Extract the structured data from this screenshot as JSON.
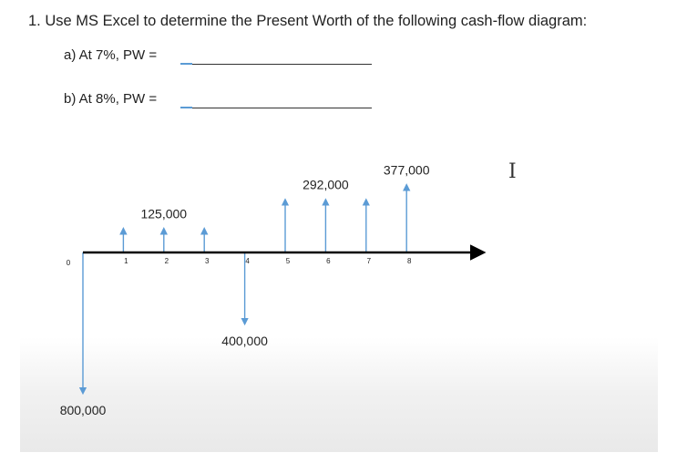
{
  "question": {
    "title": "1. Use MS Excel to determine the Present Worth of the following cash-flow diagram:",
    "part_a": "a)  At 7%, PW =",
    "part_b": "b)  At 8%, PW ="
  },
  "cursor_icon": "text-cursor-icon",
  "colors": {
    "arrow": "#5b9bd5",
    "axis": "#000000"
  },
  "chart_data": {
    "type": "cash-flow",
    "periods": [
      "0",
      "1",
      "2",
      "3",
      "4",
      "5",
      "6",
      "7",
      "8"
    ],
    "cash_flows": [
      -800000,
      125000,
      125000,
      125000,
      -400000,
      292000,
      292000,
      292000,
      377000
    ],
    "labels": [
      {
        "text": "800,000",
        "period": 0
      },
      {
        "text": "125,000",
        "period": 2
      },
      {
        "text": "400,000",
        "period": 4
      },
      {
        "text": "292,000",
        "period": 6
      },
      {
        "text": "377,000",
        "period": 8
      }
    ]
  }
}
